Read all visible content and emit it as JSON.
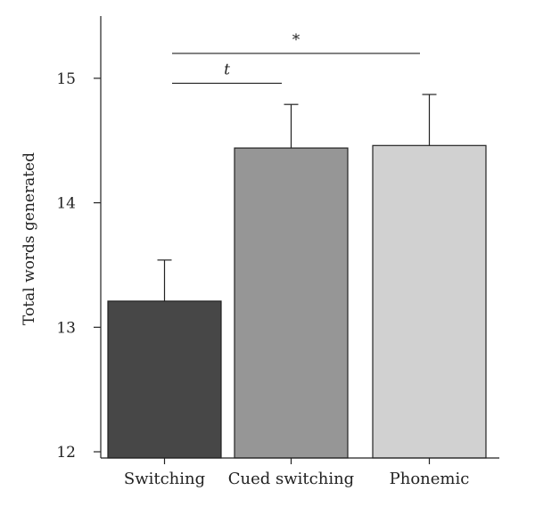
{
  "chart_data": {
    "type": "bar",
    "title": "",
    "xlabel": "",
    "ylabel": "Total words generated",
    "ylim": [
      11.95,
      15.5
    ],
    "yticks": [
      12,
      13,
      14,
      15
    ],
    "ytick_labels": [
      "12",
      "13",
      "14",
      "15"
    ],
    "categories": [
      "Switching",
      "Cued switching",
      "Phonemic"
    ],
    "values": [
      13.21,
      14.44,
      14.46
    ],
    "errors": [
      0.33,
      0.35,
      0.41
    ],
    "colors": [
      "#474747",
      "#969696",
      "#d1d1d1"
    ],
    "grid": false,
    "legend": "none",
    "significance": [
      {
        "from": 0,
        "to": 1,
        "label": "t",
        "y": 14.96,
        "italic": true
      },
      {
        "from": 0,
        "to": 2,
        "label": "*",
        "y": 15.2,
        "italic": false
      }
    ]
  }
}
